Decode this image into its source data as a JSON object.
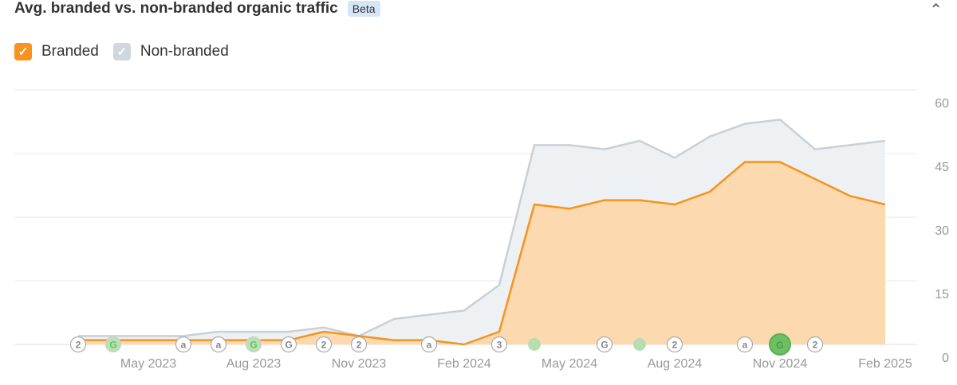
{
  "header": {
    "title": "Avg. branded vs. non-branded organic traffic",
    "badge": "Beta",
    "collapse_icon": "chevron-up-icon"
  },
  "colors": {
    "branded": "#f7931e",
    "branded_fill": "#fdd9b0",
    "nonbranded": "#c9d0d6",
    "nonbranded_fill": "#eef1f4"
  },
  "chart_data": {
    "type": "area",
    "title": "Avg. branded vs. non-branded organic traffic",
    "x": [
      "Mar 2023",
      "Apr 2023",
      "May 2023",
      "Jun 2023",
      "Jul 2023",
      "Aug 2023",
      "Sep 2023",
      "Oct 2023",
      "Nov 2023",
      "Dec 2023",
      "Jan 2024",
      "Feb 2024",
      "Mar 2024",
      "Apr 2024",
      "May 2024",
      "Jun 2024",
      "Jul 2024",
      "Aug 2024",
      "Sep 2024",
      "Oct 2024",
      "Nov 2024",
      "Dec 2024",
      "Jan 2025",
      "Feb 2025"
    ],
    "series": [
      {
        "name": "Branded",
        "values": [
          1,
          1,
          1,
          1,
          1,
          1,
          1,
          3,
          2,
          1,
          1,
          0,
          3,
          33,
          32,
          34,
          34,
          33,
          36,
          43,
          43,
          39,
          35,
          33
        ]
      },
      {
        "name": "Non-branded",
        "values": [
          2,
          2,
          2,
          2,
          3,
          3,
          3,
          4,
          2,
          6,
          7,
          8,
          14,
          47,
          47,
          46,
          48,
          44,
          49,
          52,
          53,
          46,
          47,
          48
        ]
      }
    ],
    "x_ticks": [
      "May 2023",
      "Aug 2023",
      "Nov 2023",
      "Feb 2024",
      "May 2024",
      "Aug 2024",
      "Nov 2024",
      "Feb 2025"
    ],
    "y_ticks": [
      "0",
      "15",
      "30",
      "45",
      "60"
    ],
    "ylim": [
      0,
      60
    ],
    "grid": true,
    "legend": "top-left",
    "annotations": [
      {
        "month": "Mar 2023",
        "label": "2",
        "kind": "count"
      },
      {
        "month": "Apr 2023",
        "label": "G",
        "kind": "google-green"
      },
      {
        "month": "Jun 2023",
        "label": "a",
        "kind": "ahrefs"
      },
      {
        "month": "Jul 2023",
        "label": "a",
        "kind": "ahrefs"
      },
      {
        "month": "Aug 2023",
        "label": "G",
        "kind": "google-green"
      },
      {
        "month": "Sep 2023",
        "label": "G",
        "kind": "google"
      },
      {
        "month": "Oct 2023",
        "label": "2",
        "kind": "count"
      },
      {
        "month": "Nov 2023",
        "label": "2",
        "kind": "count"
      },
      {
        "month": "Jan 2024",
        "label": "a",
        "kind": "ahrefs"
      },
      {
        "month": "Mar 2024",
        "label": "3",
        "kind": "count"
      },
      {
        "month": "Apr 2024",
        "label": "",
        "kind": "dot-green"
      },
      {
        "month": "Jun 2024",
        "label": "G",
        "kind": "google"
      },
      {
        "month": "Jul 2024",
        "label": "",
        "kind": "dot-green"
      },
      {
        "month": "Aug 2024",
        "label": "2",
        "kind": "count"
      },
      {
        "month": "Oct 2024",
        "label": "a",
        "kind": "ahrefs"
      },
      {
        "month": "Nov 2024",
        "label": "G",
        "kind": "google-big"
      },
      {
        "month": "Dec 2024",
        "label": "2",
        "kind": "count"
      }
    ]
  },
  "legend": [
    {
      "label": "Branded",
      "checked": true
    },
    {
      "label": "Non-branded",
      "checked": true
    }
  ]
}
